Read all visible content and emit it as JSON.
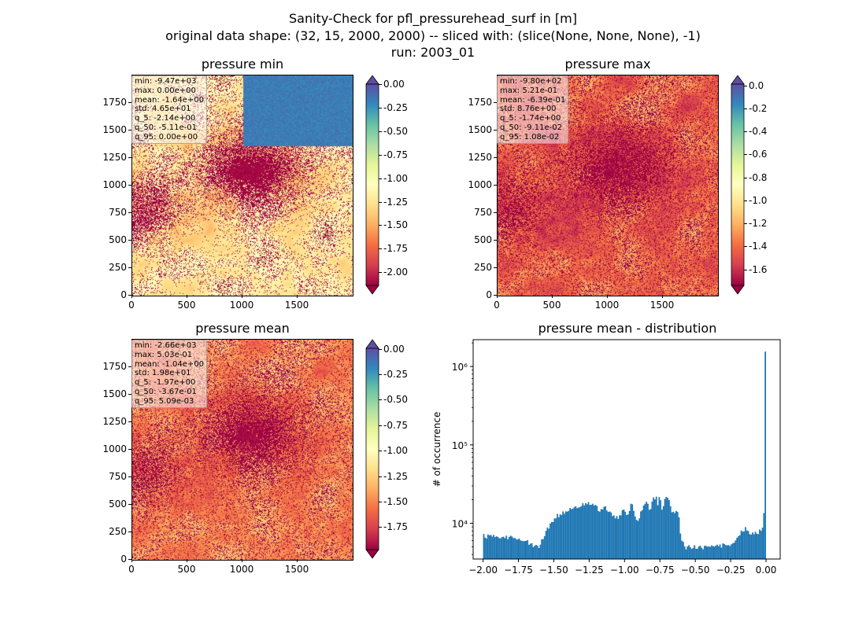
{
  "figure": {
    "suptitle_line1": "Sanity-Check for pfl_pressurehead_surf in [m]",
    "suptitle_line2": "original data shape: (32, 15, 2000, 2000) -- sliced with: (slice(None, None, None), -1)",
    "suptitle_line3": "run: 2003_01"
  },
  "chart_data": [
    {
      "type": "heatmap",
      "title": "pressure min",
      "x_ticks": [
        "0",
        "500",
        "1000",
        "1500"
      ],
      "y_ticks": [
        "0",
        "250",
        "500",
        "750",
        "1000",
        "1250",
        "1500",
        "1750"
      ],
      "xlim": [
        0,
        2000
      ],
      "ylim": [
        0,
        2000
      ],
      "colormap": "Spectral",
      "colorbar_range": [
        -2.14,
        0.0
      ],
      "colorbar_extend": "both",
      "colorbar_ticks": [
        "0.00",
        "-0.25",
        "-0.50",
        "-0.75",
        "-1.00",
        "-1.25",
        "-1.50",
        "-1.75",
        "-2.00"
      ],
      "stats": [
        "min: -9.47e+03",
        "max: 0.00e+00",
        "mean: -1.64e+00",
        "std: 4.65e+01",
        "q_5: -2.14e+00",
        "q_50: -5.11e-01",
        "q_95: 0.00e+00"
      ]
    },
    {
      "type": "heatmap",
      "title": "pressure max",
      "x_ticks": [
        "0",
        "500",
        "1000",
        "1500"
      ],
      "y_ticks": [
        "0",
        "250",
        "500",
        "750",
        "1000",
        "1250",
        "1500",
        "1750"
      ],
      "xlim": [
        0,
        2000
      ],
      "ylim": [
        0,
        2000
      ],
      "colormap": "Spectral",
      "colorbar_range": [
        -1.74,
        0.0108
      ],
      "colorbar_extend": "both",
      "colorbar_ticks": [
        "0.0",
        "-0.2",
        "-0.4",
        "-0.6",
        "-0.8",
        "-1.0",
        "-1.2",
        "-1.4",
        "-1.6"
      ],
      "stats": [
        "min: -9.80e+02",
        "max: 5.21e-01",
        "mean: -6.39e-01",
        "std: 8.76e+00",
        "q_5: -1.74e+00",
        "q_50: -9.11e-02",
        "q_95: 1.08e-02"
      ]
    },
    {
      "type": "heatmap",
      "title": "pressure mean",
      "x_ticks": [
        "0",
        "500",
        "1000",
        "1500"
      ],
      "y_ticks": [
        "0",
        "250",
        "500",
        "750",
        "1000",
        "1250",
        "1500",
        "1750"
      ],
      "xlim": [
        0,
        2000
      ],
      "ylim": [
        0,
        2000
      ],
      "colormap": "Spectral",
      "colorbar_range": [
        -1.97,
        0.00509
      ],
      "colorbar_extend": "both",
      "colorbar_ticks": [
        "0.00",
        "-0.25",
        "-0.50",
        "-0.75",
        "-1.00",
        "-1.25",
        "-1.50",
        "-1.75"
      ],
      "stats": [
        "min: -2.66e+03",
        "max: 5.03e-01",
        "mean: -1.04e+00",
        "std: 1.98e+01",
        "q_5: -1.97e+00",
        "q_50: -3.67e-01",
        "q_95: 5.09e-03"
      ]
    },
    {
      "type": "bar",
      "title": "pressure mean - distribution",
      "ylabel": "# of occurrence",
      "xlabel": "",
      "yscale": "log",
      "xlim": [
        -2.07,
        0.1
      ],
      "ylim": [
        3500,
        2200000
      ],
      "x_ticks": [
        "−2.00",
        "−1.75",
        "−1.50",
        "−1.25",
        "−1.00",
        "−0.75",
        "−0.50",
        "−0.25",
        "0.00"
      ],
      "y_ticks": [
        "10⁴",
        "10⁵",
        "10⁶"
      ],
      "bar_color": "#1f77b4",
      "bin_range": [
        -2.0,
        0.0
      ],
      "bins": 200,
      "bin_anchor_x": [
        -2.0,
        -1.98,
        -1.96,
        -1.9,
        -1.8,
        -1.7,
        -1.65,
        -1.62,
        -1.6,
        -1.58,
        -1.55,
        -1.52,
        -1.5,
        -1.48,
        -1.45,
        -1.42,
        -1.4,
        -1.35,
        -1.3,
        -1.27,
        -1.25,
        -1.23,
        -1.2,
        -1.17,
        -1.15,
        -1.1,
        -1.05,
        -1.0,
        -0.98,
        -0.95,
        -0.92,
        -0.9,
        -0.88,
        -0.86,
        -0.84,
        -0.82,
        -0.8,
        -0.78,
        -0.76,
        -0.75,
        -0.74,
        -0.72,
        -0.7,
        -0.68,
        -0.66,
        -0.64,
        -0.62,
        -0.6,
        -0.58,
        -0.56,
        -0.55,
        -0.53,
        -0.5,
        -0.45,
        -0.4,
        -0.35,
        -0.3,
        -0.25,
        -0.22,
        -0.2,
        -0.18,
        -0.15,
        -0.12,
        -0.1,
        -0.08,
        -0.05,
        -0.03,
        -0.02,
        -0.01,
        0.0
      ],
      "bin_anchor_count": [
        7200,
        6800,
        6900,
        6700,
        6600,
        6000,
        5300,
        4900,
        5300,
        6200,
        8200,
        10000,
        11500,
        12500,
        13000,
        13800,
        14500,
        15500,
        17000,
        18500,
        17200,
        18000,
        16500,
        14000,
        16500,
        13500,
        11500,
        15000,
        13000,
        17500,
        12000,
        11000,
        14500,
        16500,
        19000,
        13000,
        20000,
        22000,
        17000,
        26000,
        14000,
        18000,
        24000,
        17000,
        13000,
        13500,
        14000,
        6500,
        5200,
        4900,
        5000,
        5000,
        4900,
        4950,
        5000,
        5100,
        5200,
        5400,
        5800,
        6400,
        7500,
        8500,
        7800,
        7500,
        7700,
        7800,
        8000,
        9000,
        13500,
        1550000
      ]
    }
  ]
}
